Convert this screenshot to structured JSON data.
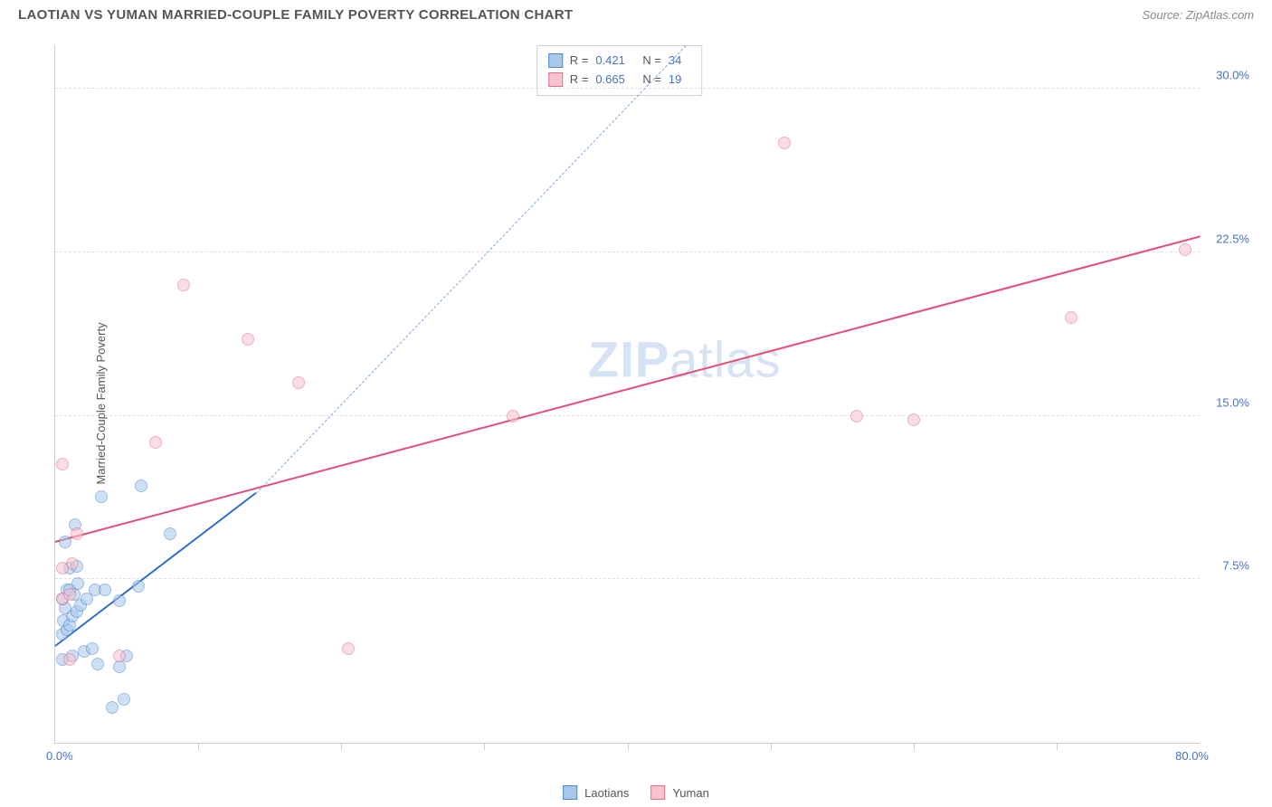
{
  "header": {
    "title": "LAOTIAN VS YUMAN MARRIED-COUPLE FAMILY POVERTY CORRELATION CHART",
    "source": "Source: ZipAtlas.com"
  },
  "chart": {
    "type": "scatter",
    "y_axis_title": "Married-Couple Family Poverty",
    "xlim": [
      0,
      80
    ],
    "ylim": [
      0,
      32
    ],
    "x_min_label": "0.0%",
    "x_max_label": "80.0%",
    "y_ticks": [
      7.5,
      15.0,
      22.5,
      30.0
    ],
    "y_tick_labels": [
      "7.5%",
      "15.0%",
      "22.5%",
      "30.0%"
    ],
    "x_tick_positions": [
      10,
      20,
      30,
      40,
      50,
      60,
      70
    ],
    "grid_color": "#e0e0e0",
    "axis_color": "#cccccc",
    "background_color": "#ffffff",
    "marker_radius": 7,
    "marker_opacity": 0.55,
    "series": [
      {
        "name": "Laotians",
        "fill": "#a8c8ec",
        "stroke": "#4b86d1",
        "r_value": "0.421",
        "n_value": "34",
        "trend_solid": {
          "x1": 0,
          "y1": 4.5,
          "x2": 14,
          "y2": 11.5,
          "color": "#2e6fc9",
          "width": 2
        },
        "trend_dashed": {
          "x1": 14,
          "y1": 11.5,
          "x2": 44,
          "y2": 32,
          "color": "#7ea8dc",
          "width": 1
        },
        "points": [
          [
            0.5,
            5.0
          ],
          [
            0.8,
            5.2
          ],
          [
            0.6,
            5.6
          ],
          [
            1.0,
            5.4
          ],
          [
            1.2,
            5.8
          ],
          [
            0.7,
            6.2
          ],
          [
            1.5,
            6.0
          ],
          [
            1.8,
            6.3
          ],
          [
            0.5,
            6.6
          ],
          [
            1.3,
            6.8
          ],
          [
            2.2,
            6.6
          ],
          [
            0.8,
            7.0
          ],
          [
            2.8,
            7.0
          ],
          [
            1.0,
            7.0
          ],
          [
            1.6,
            7.3
          ],
          [
            0.5,
            3.8
          ],
          [
            1.2,
            4.0
          ],
          [
            2.0,
            4.2
          ],
          [
            2.6,
            4.3
          ],
          [
            3.0,
            3.6
          ],
          [
            4.5,
            3.5
          ],
          [
            4.8,
            2.0
          ],
          [
            4.0,
            1.6
          ],
          [
            3.5,
            7.0
          ],
          [
            1.0,
            8.0
          ],
          [
            1.5,
            8.1
          ],
          [
            0.7,
            9.2
          ],
          [
            1.4,
            10.0
          ],
          [
            3.2,
            11.3
          ],
          [
            6.0,
            11.8
          ],
          [
            8.0,
            9.6
          ],
          [
            5.0,
            4.0
          ],
          [
            4.5,
            6.5
          ],
          [
            5.8,
            7.2
          ]
        ]
      },
      {
        "name": "Yuman",
        "fill": "#f6c3cf",
        "stroke": "#e16f8c",
        "r_value": "0.665",
        "n_value": "19",
        "trend_solid": {
          "x1": 0,
          "y1": 9.3,
          "x2": 80,
          "y2": 23.3,
          "color": "#e94b77",
          "width": 2
        },
        "points": [
          [
            1.0,
            3.8
          ],
          [
            0.5,
            6.6
          ],
          [
            1.0,
            6.8
          ],
          [
            0.5,
            8.0
          ],
          [
            1.2,
            8.2
          ],
          [
            1.5,
            9.6
          ],
          [
            0.5,
            12.8
          ],
          [
            4.5,
            4.0
          ],
          [
            7.0,
            13.8
          ],
          [
            9.0,
            21.0
          ],
          [
            13.5,
            18.5
          ],
          [
            17.0,
            16.5
          ],
          [
            20.5,
            4.3
          ],
          [
            32.0,
            15.0
          ],
          [
            51.0,
            27.5
          ],
          [
            56.0,
            15.0
          ],
          [
            71.0,
            19.5
          ],
          [
            79.0,
            22.6
          ],
          [
            60.0,
            14.8
          ]
        ]
      }
    ],
    "watermark": {
      "part1": "ZIP",
      "part2": "atlas"
    },
    "stats_legend_labels": {
      "r": "R  =",
      "n": "N  ="
    }
  },
  "legend": {
    "series1_label": "Laotians",
    "series2_label": "Yuman"
  }
}
